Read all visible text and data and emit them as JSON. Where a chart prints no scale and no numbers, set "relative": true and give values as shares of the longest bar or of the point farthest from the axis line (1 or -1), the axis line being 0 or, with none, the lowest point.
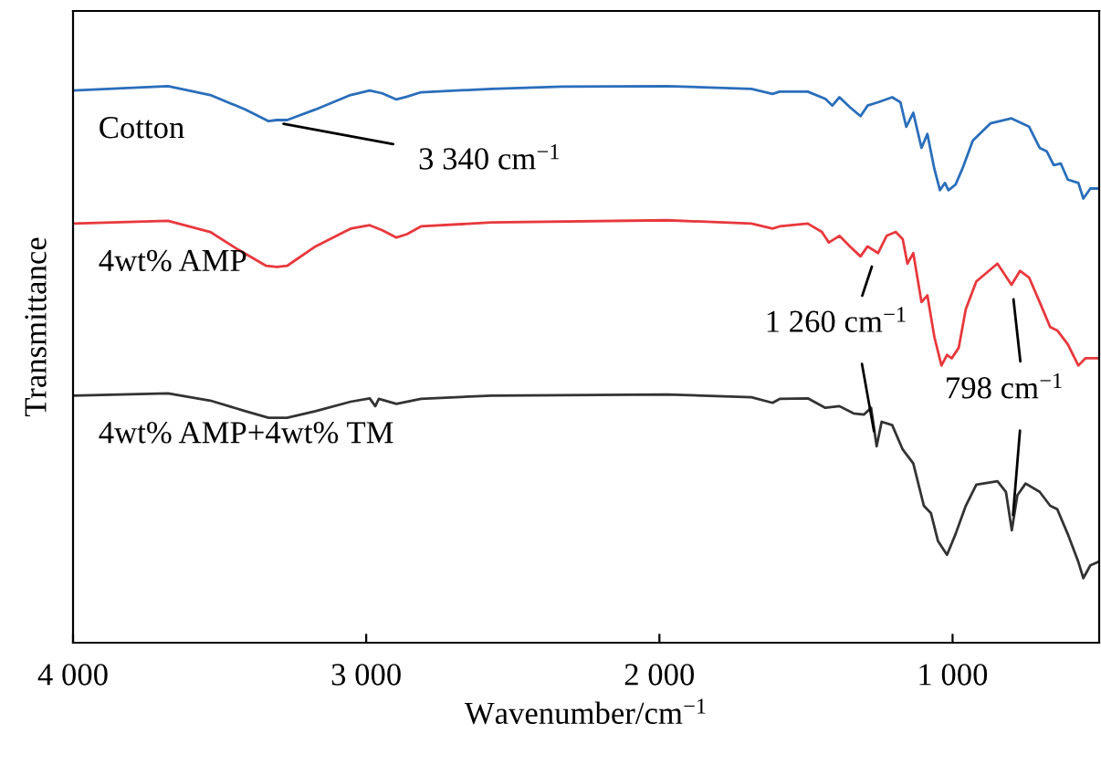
{
  "chart_data": {
    "type": "line",
    "relative": true,
    "xlabel": "Wavenumber/cm$^{−1}$",
    "ylabel": "Transmittance",
    "xlim": [
      4000,
      500
    ],
    "xticks": [
      {
        "value": 4000,
        "label": "4 000"
      },
      {
        "value": 3000,
        "label": "3 000"
      },
      {
        "value": 2000,
        "label": "2 000"
      },
      {
        "value": 1000,
        "label": "1 000"
      }
    ],
    "tick_labels": "x",
    "grid": false,
    "legend": false,
    "marker": "none",
    "line_style": "solid",
    "series": [
      {
        "name": "Cotton",
        "color": "#2a6ebb",
        "x": [
          4000,
          3676,
          3532,
          3412,
          3333,
          3305,
          3270,
          3173,
          3053,
          2988,
          2945,
          2897,
          2861,
          2813,
          2573,
          2333,
          1974,
          1686,
          1614,
          1590,
          1494,
          1434,
          1410,
          1386,
          1350,
          1314,
          1290,
          1254,
          1206,
          1178,
          1158,
          1134,
          1106,
          1086,
          1062,
          1043,
          1026,
          1014,
          990,
          967,
          931,
          871,
          799,
          739,
          703,
          679,
          655,
          631,
          607,
          571,
          554,
          530,
          504
        ],
        "values": [
          0.992,
          1.0,
          0.984,
          0.958,
          0.937,
          0.939,
          0.939,
          0.958,
          0.984,
          0.992,
          0.987,
          0.976,
          0.981,
          0.989,
          0.995,
          0.999,
          1.0,
          0.995,
          0.986,
          0.99,
          0.99,
          0.977,
          0.965,
          0.98,
          0.962,
          0.946,
          0.965,
          0.971,
          0.98,
          0.971,
          0.927,
          0.952,
          0.889,
          0.914,
          0.851,
          0.813,
          0.826,
          0.813,
          0.823,
          0.851,
          0.902,
          0.933,
          0.942,
          0.927,
          0.889,
          0.883,
          0.858,
          0.861,
          0.832,
          0.826,
          0.798,
          0.816,
          0.816
        ]
      },
      {
        "name": "4wt% AMP",
        "color": "#e8383d",
        "x": [
          4000,
          3676,
          3532,
          3436,
          3341,
          3305,
          3270,
          3173,
          3053,
          2988,
          2945,
          2897,
          2861,
          2813,
          2573,
          1974,
          1686,
          1614,
          1590,
          1494,
          1446,
          1422,
          1386,
          1350,
          1314,
          1290,
          1254,
          1225,
          1194,
          1170,
          1154,
          1134,
          1106,
          1086,
          1062,
          1038,
          1019,
          1003,
          979,
          955,
          919,
          847,
          799,
          770,
          739,
          703,
          667,
          643,
          607,
          571,
          547,
          504
        ],
        "values": [
          0.753,
          0.758,
          0.738,
          0.706,
          0.677,
          0.675,
          0.677,
          0.712,
          0.744,
          0.75,
          0.741,
          0.728,
          0.734,
          0.748,
          0.755,
          0.759,
          0.753,
          0.744,
          0.748,
          0.753,
          0.738,
          0.719,
          0.731,
          0.712,
          0.694,
          0.712,
          0.7,
          0.731,
          0.738,
          0.725,
          0.681,
          0.7,
          0.612,
          0.624,
          0.549,
          0.498,
          0.517,
          0.511,
          0.53,
          0.599,
          0.649,
          0.681,
          0.643,
          0.668,
          0.656,
          0.612,
          0.567,
          0.561,
          0.536,
          0.498,
          0.511,
          0.511
        ]
      },
      {
        "name": "4wt% AMP+4wt% TM",
        "color": "#333333",
        "x": [
          4000,
          3676,
          3532,
          3412,
          3333,
          3270,
          3173,
          3053,
          2988,
          2969,
          2957,
          2897,
          2813,
          2573,
          1974,
          1686,
          1614,
          1590,
          1494,
          1434,
          1386,
          1338,
          1302,
          1278,
          1259,
          1242,
          1206,
          1170,
          1134,
          1098,
          1074,
          1050,
          1019,
          990,
          955,
          919,
          847,
          818,
          798,
          779,
          751,
          703,
          667,
          643,
          607,
          571,
          554,
          530,
          504
        ],
        "values": [
          0.444,
          0.448,
          0.435,
          0.416,
          0.404,
          0.404,
          0.416,
          0.433,
          0.439,
          0.425,
          0.438,
          0.429,
          0.438,
          0.444,
          0.446,
          0.441,
          0.431,
          0.438,
          0.439,
          0.422,
          0.425,
          0.412,
          0.41,
          0.422,
          0.353,
          0.397,
          0.391,
          0.347,
          0.322,
          0.246,
          0.233,
          0.183,
          0.158,
          0.195,
          0.246,
          0.284,
          0.29,
          0.271,
          0.202,
          0.265,
          0.286,
          0.271,
          0.246,
          0.24,
          0.195,
          0.145,
          0.116,
          0.139,
          0.145
        ]
      }
    ],
    "annotations": [
      {
        "text": "3 340 cm$^{−1}$",
        "x": 3333,
        "y": 0.937
      },
      {
        "text": "1 260 cm$^{−1}$",
        "x": 1259,
        "y": 0.353
      },
      {
        "text": "798 cm$^{−1}$",
        "x": 798,
        "y": 0.202
      }
    ]
  }
}
